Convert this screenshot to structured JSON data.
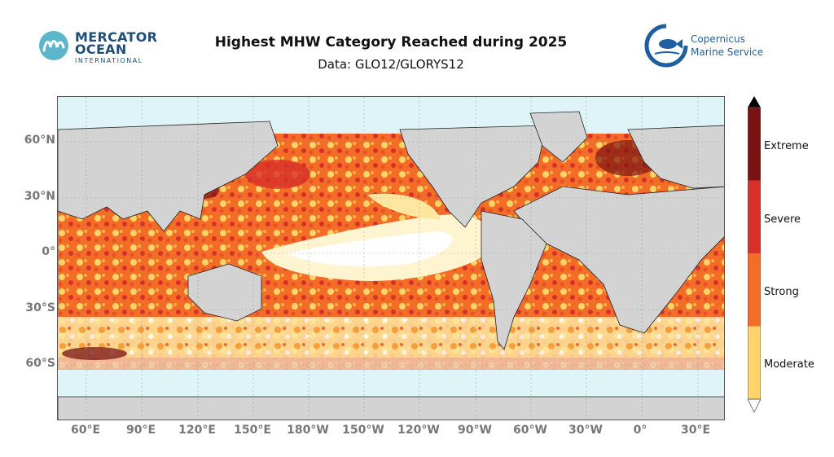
{
  "header": {
    "title": "Highest MHW Category Reached during 2025",
    "subtitle": "Data: GLO12/GLORYS12"
  },
  "logos": {
    "left_name_line1": "MERCATOR",
    "left_name_line2": "OCEAN",
    "left_name_line3": "INTERNATIONAL",
    "right_name_line1": "Copernicus",
    "right_name_line2": "Marine Service"
  },
  "map": {
    "lat_ticks": [
      "60°N",
      "30°N",
      "0°",
      "30°S",
      "60°S"
    ],
    "lon_ticks": [
      "60°E",
      "90°E",
      "120°E",
      "150°E",
      "180°W",
      "150°W",
      "120°W",
      "90°W",
      "60°W",
      "30°W",
      "0°",
      "30°E"
    ],
    "land_color": "#d3d3d3",
    "ice_color": "#dff4f7"
  },
  "colorbar": {
    "categories": [
      "Moderate",
      "Strong",
      "Severe",
      "Extreme"
    ],
    "colors": [
      "#fdd46a",
      "#f46d27",
      "#d7302a",
      "#7a1212"
    ]
  }
}
